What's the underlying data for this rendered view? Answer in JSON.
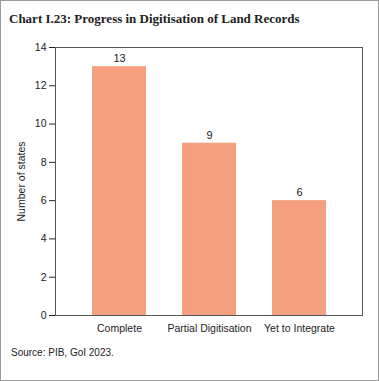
{
  "chart_data": {
    "type": "bar",
    "title": "Chart I.23: Progress in Digitisation of Land Records",
    "categories": [
      "Complete",
      "Partial Digitisation",
      "Yet to Integrate"
    ],
    "values": [
      13,
      9,
      6
    ],
    "color": "#f4a07f",
    "y_label": "Number of states",
    "ylim": [
      0,
      14
    ],
    "yticks": [
      0,
      2,
      4,
      6,
      8,
      10,
      12,
      14
    ],
    "grid": false,
    "data_labels": true,
    "source": "Source: PIB, GoI 2023."
  }
}
